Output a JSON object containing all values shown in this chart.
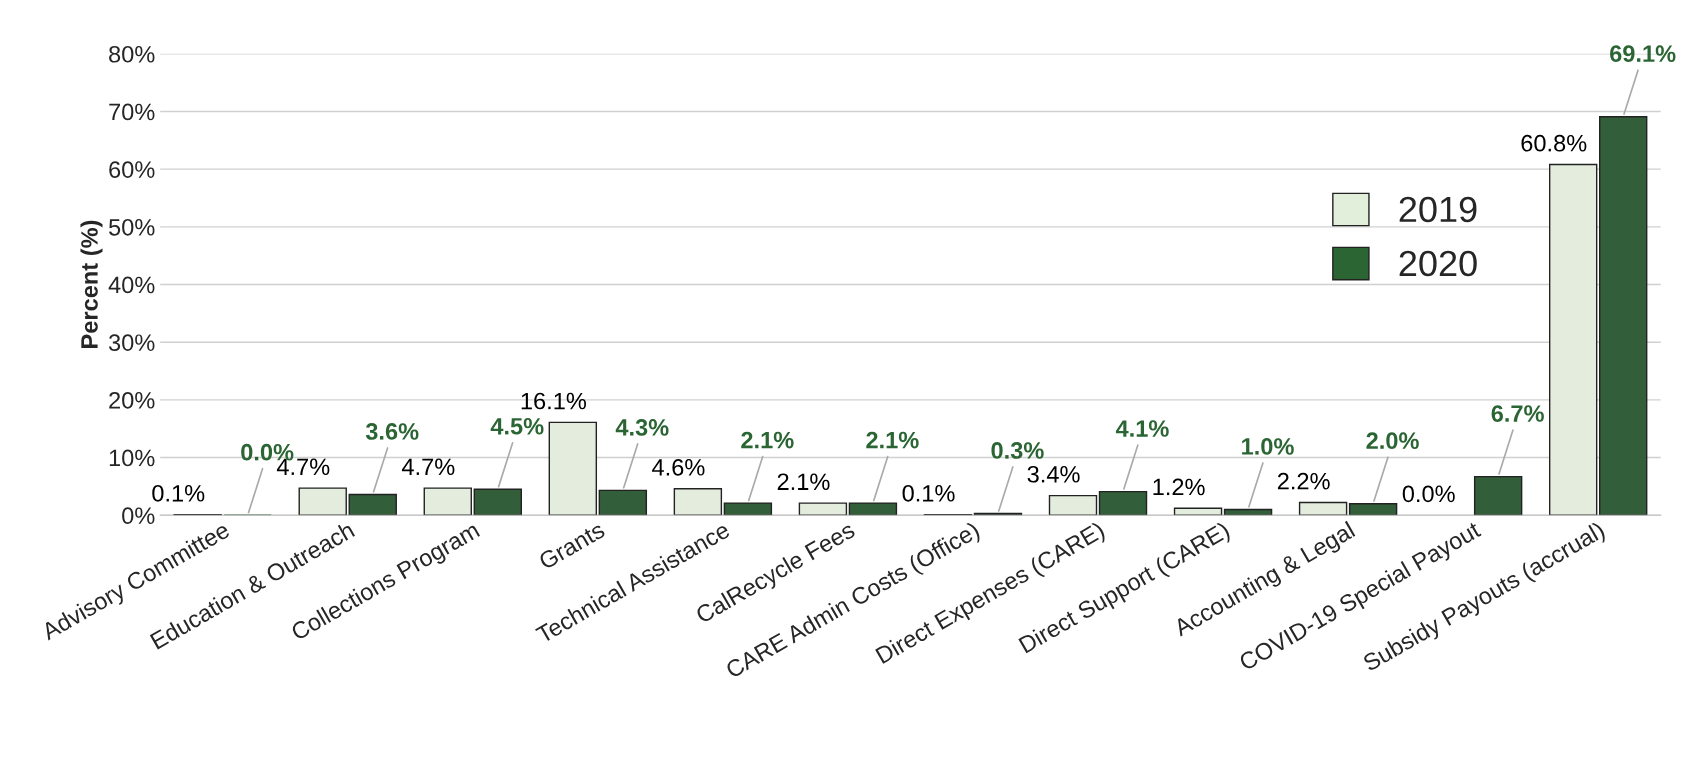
{
  "chart_data": {
    "type": "bar",
    "ylabel": "Percent (%)",
    "categories": [
      "Advisory Committee",
      "Education & Outreach",
      "Collections Program",
      "Grants",
      "Technical Assistance",
      "CalRecycle Fees",
      "CARE Admin Costs (Office)",
      "Direct Expenses (CARE)",
      "Direct Support (CARE)",
      "Accounting & Legal",
      "COVID-19 Special Payout",
      "Subsidy Payouts (accrual)"
    ],
    "series": [
      {
        "name": "2019",
        "color": "#e2efda",
        "values": [
          0.1,
          4.7,
          4.7,
          16.1,
          4.6,
          2.1,
          0.1,
          3.4,
          1.2,
          2.2,
          0.0,
          60.8
        ],
        "value_labels": [
          "0.1%",
          "4.7%",
          "4.7%",
          "16.1%",
          "4.6%",
          "2.1%",
          "0.1%",
          "3.4%",
          "1.2%",
          "2.2%",
          "0.0%",
          "60.8%"
        ]
      },
      {
        "name": "2020",
        "color": "#2b6534",
        "values": [
          0.0,
          3.6,
          4.5,
          4.3,
          2.1,
          2.1,
          0.3,
          4.1,
          1.0,
          2.0,
          6.7,
          69.1
        ],
        "value_labels": [
          "0.0%",
          "3.6%",
          "4.5%",
          "4.3%",
          "2.1%",
          "2.1%",
          "0.3%",
          "4.1%",
          "1.0%",
          "2.0%",
          "6.7%",
          "69.1%"
        ]
      }
    ],
    "ylim": [
      0,
      80
    ],
    "yticks": [
      {
        "value": 0,
        "label": "0%"
      },
      {
        "value": 10,
        "label": "10%"
      },
      {
        "value": 20,
        "label": "20%"
      },
      {
        "value": 30,
        "label": "30%"
      },
      {
        "value": 40,
        "label": "40%"
      },
      {
        "value": 50,
        "label": "50%"
      },
      {
        "value": 60,
        "label": "60%"
      },
      {
        "value": 70,
        "label": "70%"
      },
      {
        "value": 80,
        "label": "80%"
      }
    ],
    "grid": "y",
    "legend": "right"
  }
}
